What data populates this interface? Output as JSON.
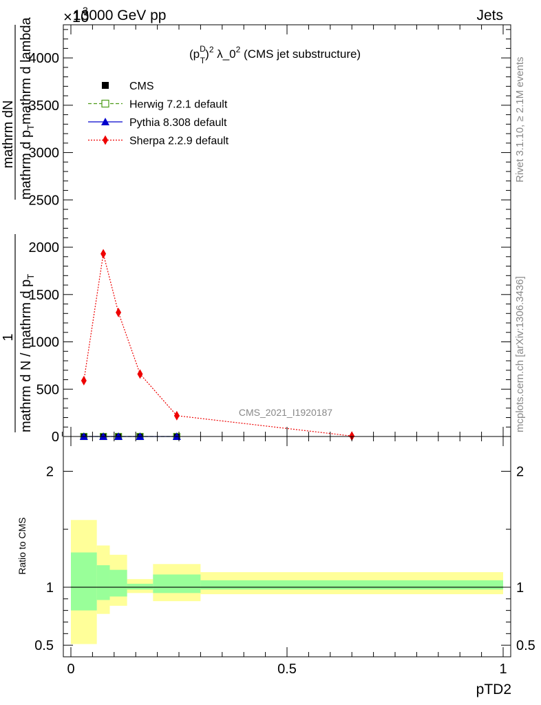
{
  "header": {
    "energy": "13000 GeV pp",
    "category": "Jets",
    "exponent_label": "×10",
    "exponent_power": "3"
  },
  "side_labels": {
    "rivet": "Rivet 3.1.10, ≥ 2.1M events",
    "mcplots": "mcplots.cern.ch [arXiv:1306.3436]"
  },
  "chart_data": [
    {
      "type": "line",
      "title_parts": {
        "p": "(p",
        "sup_D": "D",
        "sub_T": "T",
        "rest": ")",
        "sup_2": "2",
        "lambda": " λ_0",
        "sup_2b": "2",
        "suffix": " (CMS jet substructure)"
      },
      "ylabel_top": "mathrm dN",
      "ylabel_bottom": "mathrm d p",
      "ylabel_sub": "T",
      "ylabel_bottom2": "mathrm d lambda",
      "ylabel_left_num": "1",
      "ylabel_left_den": "mathrm d N / mathrm d p",
      "ylabel_left_den_sub": "T",
      "ylabel_left_den2": "mathrm d p",
      "watermark": "CMS_2021_I1920187",
      "xlim": [
        0,
        1
      ],
      "ylim": [
        0,
        4350
      ],
      "yticks": [
        0,
        500,
        1000,
        1500,
        2000,
        2500,
        3000,
        3500,
        4000
      ],
      "ytick_labels": [
        "0",
        "500",
        "1000",
        "1500",
        "2000",
        "2500",
        "3000",
        "3500",
        "4000"
      ],
      "legend": [
        {
          "name": "CMS",
          "color": "#000000",
          "marker": "square"
        },
        {
          "name": "Herwig 7.2.1 default",
          "color": "#4a9a14",
          "marker": "open-square",
          "dash": "dashed"
        },
        {
          "name": "Pythia 8.308 default",
          "color": "#0000cc",
          "marker": "triangle",
          "dash": "solid"
        },
        {
          "name": "Sherpa 2.2.9 default",
          "color": "#ee0000",
          "marker": "diamond",
          "dash": "dotted"
        }
      ],
      "series": [
        {
          "name": "CMS",
          "x": [
            0.03,
            0.075,
            0.11,
            0.16,
            0.245
          ],
          "y": [
            0,
            0,
            0,
            0,
            0
          ]
        },
        {
          "name": "Herwig 7.2.1 default",
          "x": [
            0.03,
            0.075,
            0.11,
            0.16,
            0.245
          ],
          "y": [
            0,
            0,
            0,
            0,
            0
          ]
        },
        {
          "name": "Pythia 8.308 default",
          "x": [
            0.03,
            0.075,
            0.11,
            0.16,
            0.245
          ],
          "y": [
            0,
            0,
            0,
            0,
            0
          ]
        },
        {
          "name": "Sherpa 2.2.9 default",
          "x": [
            0.03,
            0.075,
            0.11,
            0.16,
            0.245,
            0.65
          ],
          "y": [
            590,
            1930,
            1310,
            660,
            220,
            5
          ]
        }
      ]
    },
    {
      "type": "area",
      "ylabel": "Ratio to CMS",
      "xlabel": "pTD2",
      "xlim": [
        0,
        1
      ],
      "ylim": [
        0.4,
        2.3
      ],
      "xtick_labels": [
        "0",
        "0.5",
        "1"
      ],
      "xticks": [
        0,
        0.5,
        1
      ],
      "ytick_labels": [
        "0.5",
        "1",
        "2"
      ],
      "yticks": [
        0.5,
        1,
        2
      ],
      "bands": [
        {
          "x0": 0.0,
          "x1": 0.06,
          "inner": [
            0.8,
            1.3
          ],
          "outer": [
            0.51,
            1.58
          ]
        },
        {
          "x0": 0.06,
          "x1": 0.09,
          "inner": [
            0.89,
            1.19
          ],
          "outer": [
            0.77,
            1.36
          ]
        },
        {
          "x0": 0.09,
          "x1": 0.13,
          "inner": [
            0.92,
            1.15
          ],
          "outer": [
            0.84,
            1.28
          ]
        },
        {
          "x0": 0.13,
          "x1": 0.19,
          "inner": [
            0.98,
            1.03
          ],
          "outer": [
            0.95,
            1.07
          ]
        },
        {
          "x0": 0.19,
          "x1": 0.3,
          "inner": [
            0.95,
            1.11
          ],
          "outer": [
            0.88,
            1.2
          ]
        },
        {
          "x0": 0.3,
          "x1": 1.0,
          "inner": [
            0.98,
            1.06
          ],
          "outer": [
            0.94,
            1.13
          ]
        }
      ],
      "band_colors": {
        "inner": "#99ff99",
        "outer": "#ffff99"
      }
    }
  ]
}
